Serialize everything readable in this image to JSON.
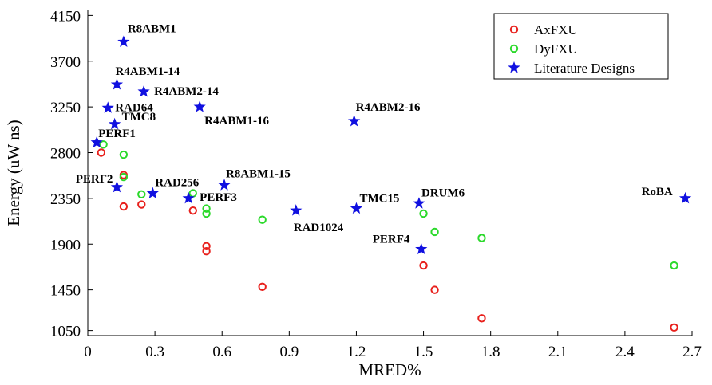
{
  "chart_data": {
    "type": "scatter",
    "title": "",
    "xlabel": "MRED%",
    "ylabel": "Energy (uW ns)",
    "xlim": [
      0,
      2.7
    ],
    "ylim": [
      1000,
      4200
    ],
    "x_ticks": [
      "0",
      "0.3",
      "0.6",
      "0.9",
      "1.2",
      "1.5",
      "1.8",
      "2.1",
      "2.4",
      "2.7"
    ],
    "y_ticks": [
      "1050",
      "1450",
      "1900",
      "2350",
      "2800",
      "3250",
      "3700",
      "4150"
    ],
    "grid": false,
    "legend_position": "top-right",
    "series": [
      {
        "name": "AxFXU",
        "marker": "circle",
        "color": "#e8201c",
        "points": [
          {
            "x": 0.06,
            "y": 2800
          },
          {
            "x": 0.16,
            "y": 2580
          },
          {
            "x": 0.16,
            "y": 2270
          },
          {
            "x": 0.24,
            "y": 2290
          },
          {
            "x": 0.47,
            "y": 2230
          },
          {
            "x": 0.53,
            "y": 1880
          },
          {
            "x": 0.53,
            "y": 1830
          },
          {
            "x": 0.78,
            "y": 1480
          },
          {
            "x": 1.5,
            "y": 1690
          },
          {
            "x": 1.55,
            "y": 1450
          },
          {
            "x": 1.76,
            "y": 1170
          },
          {
            "x": 2.62,
            "y": 1080
          }
        ]
      },
      {
        "name": "DyFXU",
        "marker": "circle",
        "color": "#2bd92b",
        "points": [
          {
            "x": 0.07,
            "y": 2880
          },
          {
            "x": 0.16,
            "y": 2780
          },
          {
            "x": 0.16,
            "y": 2560
          },
          {
            "x": 0.24,
            "y": 2390
          },
          {
            "x": 0.47,
            "y": 2400
          },
          {
            "x": 0.53,
            "y": 2250
          },
          {
            "x": 0.53,
            "y": 2200
          },
          {
            "x": 0.78,
            "y": 2140
          },
          {
            "x": 1.5,
            "y": 2200
          },
          {
            "x": 1.55,
            "y": 2020
          },
          {
            "x": 1.76,
            "y": 1960
          },
          {
            "x": 2.62,
            "y": 1690
          }
        ]
      },
      {
        "name": "Literature Designs",
        "marker": "star",
        "color": "#1010e0",
        "points": [
          {
            "x": 0.16,
            "y": 3890,
            "label": "R8ABM1"
          },
          {
            "x": 0.13,
            "y": 3470,
            "label": "R4ABM1-14"
          },
          {
            "x": 0.25,
            "y": 3400,
            "label": "R4ABM2-14"
          },
          {
            "x": 0.09,
            "y": 3240,
            "label": "RAD64"
          },
          {
            "x": 0.5,
            "y": 3250,
            "label": "R4ABM1-16"
          },
          {
            "x": 0.12,
            "y": 3080,
            "label": "TMC8"
          },
          {
            "x": 1.19,
            "y": 3110,
            "label": "R4ABM2-16"
          },
          {
            "x": 0.04,
            "y": 2900,
            "label": "PERF1"
          },
          {
            "x": 0.13,
            "y": 2460,
            "label": "PERF2"
          },
          {
            "x": 0.29,
            "y": 2400,
            "label": "RAD256"
          },
          {
            "x": 0.61,
            "y": 2480,
            "label": "R8ABM1-15"
          },
          {
            "x": 0.45,
            "y": 2350,
            "label": "PERF3"
          },
          {
            "x": 0.93,
            "y": 2230,
            "label": "RAD1024"
          },
          {
            "x": 1.2,
            "y": 2250,
            "label": "TMC15"
          },
          {
            "x": 1.48,
            "y": 2300,
            "label": "DRUM6"
          },
          {
            "x": 1.49,
            "y": 1850,
            "label": "PERF4"
          },
          {
            "x": 2.67,
            "y": 2350,
            "label": "RoBA"
          }
        ]
      }
    ]
  }
}
